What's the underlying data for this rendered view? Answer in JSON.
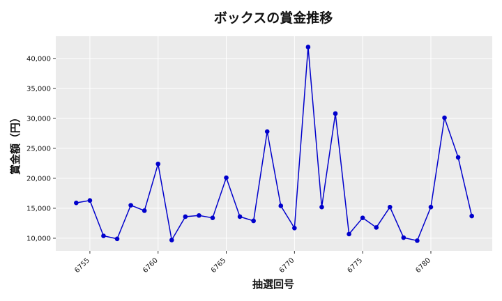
{
  "chart_data": {
    "type": "line",
    "title": "ボックスの賞金推移",
    "xlabel": "抽選回号",
    "ylabel": "賞金額（円）",
    "grid": true,
    "xlim": [
      6752.5,
      6784.5
    ],
    "ylim": [
      7900,
      43700
    ],
    "x_ticks": [
      6755,
      6760,
      6765,
      6770,
      6775,
      6780
    ],
    "x_tick_labels": [
      "6755",
      "6760",
      "6765",
      "6770",
      "6775",
      "6780"
    ],
    "y_ticks": [
      10000,
      15000,
      20000,
      25000,
      30000,
      35000,
      40000
    ],
    "y_tick_labels": [
      "10,000",
      "15,000",
      "20,000",
      "25,000",
      "30,000",
      "35,000",
      "40,000"
    ],
    "series": [
      {
        "color": "#0000cc",
        "x": [
          6754,
          6755,
          6756,
          6757,
          6758,
          6759,
          6760,
          6761,
          6762,
          6763,
          6764,
          6765,
          6766,
          6767,
          6768,
          6769,
          6770,
          6771,
          6772,
          6773,
          6774,
          6775,
          6776,
          6777,
          6778,
          6779,
          6780,
          6781,
          6782,
          6783
        ],
        "y": [
          15900,
          16300,
          10400,
          9900,
          15500,
          14600,
          22400,
          9700,
          13600,
          13800,
          13400,
          20100,
          13600,
          12900,
          27800,
          15400,
          11700,
          41900,
          15200,
          30800,
          10700,
          13400,
          11800,
          15200,
          10100,
          9600,
          15200,
          30100,
          23500,
          13700
        ]
      }
    ]
  }
}
